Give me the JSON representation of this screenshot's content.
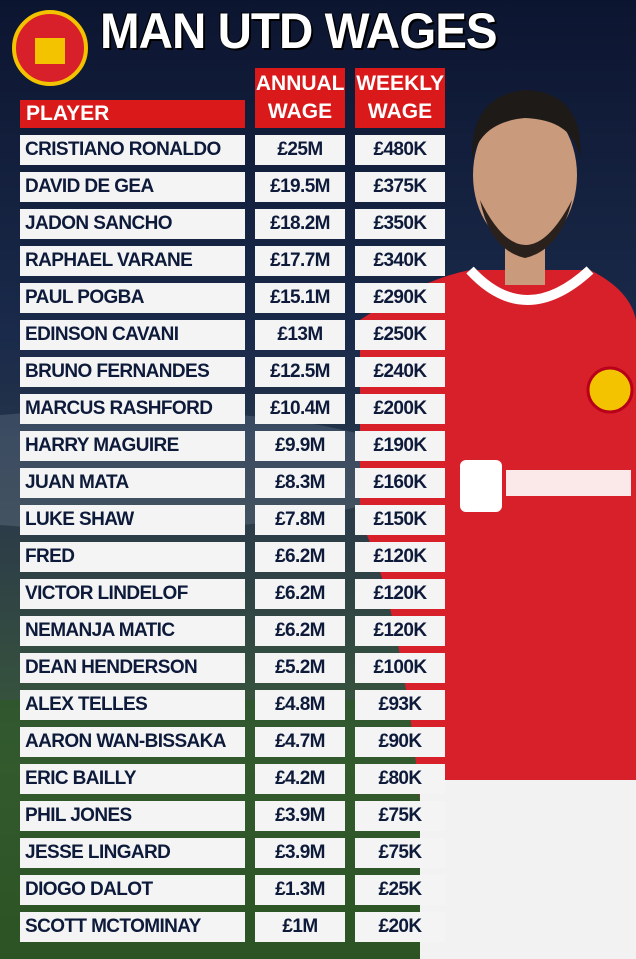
{
  "title": "MAN UTD WAGES",
  "table": {
    "headers": [
      "PLAYER",
      "ANNUAL WAGE",
      "WEEKLY WAGE"
    ],
    "rows": [
      [
        "CRISTIANO RONALDO",
        "£25M",
        "£480K"
      ],
      [
        "DAVID DE GEA",
        "£19.5M",
        "£375K"
      ],
      [
        "JADON SANCHO",
        "£18.2M",
        "£350K"
      ],
      [
        "RAPHAEL VARANE",
        "£17.7M",
        "£340K"
      ],
      [
        "PAUL POGBA",
        "£15.1M",
        "£290K"
      ],
      [
        "EDINSON CAVANI",
        "£13M",
        "£250K"
      ],
      [
        "BRUNO FERNANDES",
        "£12.5M",
        "£240K"
      ],
      [
        "MARCUS RASHFORD",
        "£10.4M",
        "£200K"
      ],
      [
        "HARRY MAGUIRE",
        "£9.9M",
        "£190K"
      ],
      [
        "JUAN MATA",
        "£8.3M",
        "£160K"
      ],
      [
        "LUKE SHAW",
        "£7.8M",
        "£150K"
      ],
      [
        "FRED",
        "£6.2M",
        "£120K"
      ],
      [
        "VICTOR LINDELOF",
        "£6.2M",
        "£120K"
      ],
      [
        "NEMANJA MATIC",
        "£6.2M",
        "£120K"
      ],
      [
        "DEAN HENDERSON",
        "£5.2M",
        "£100K"
      ],
      [
        "ALEX TELLES",
        "£4.8M",
        "£93K"
      ],
      [
        "AARON WAN-BISSAKA",
        "£4.7M",
        "£90K"
      ],
      [
        "ERIC BAILLY",
        "£4.2M",
        "£80K"
      ],
      [
        "PHIL JONES",
        "£3.9M",
        "£75K"
      ],
      [
        "JESSE LINGARD",
        "£3.9M",
        "£75K"
      ],
      [
        "DIOGO DALOT",
        "£1.3M",
        "£25K"
      ],
      [
        "SCOTT MCTOMINAY",
        "£1M",
        "£20K"
      ]
    ]
  }
}
